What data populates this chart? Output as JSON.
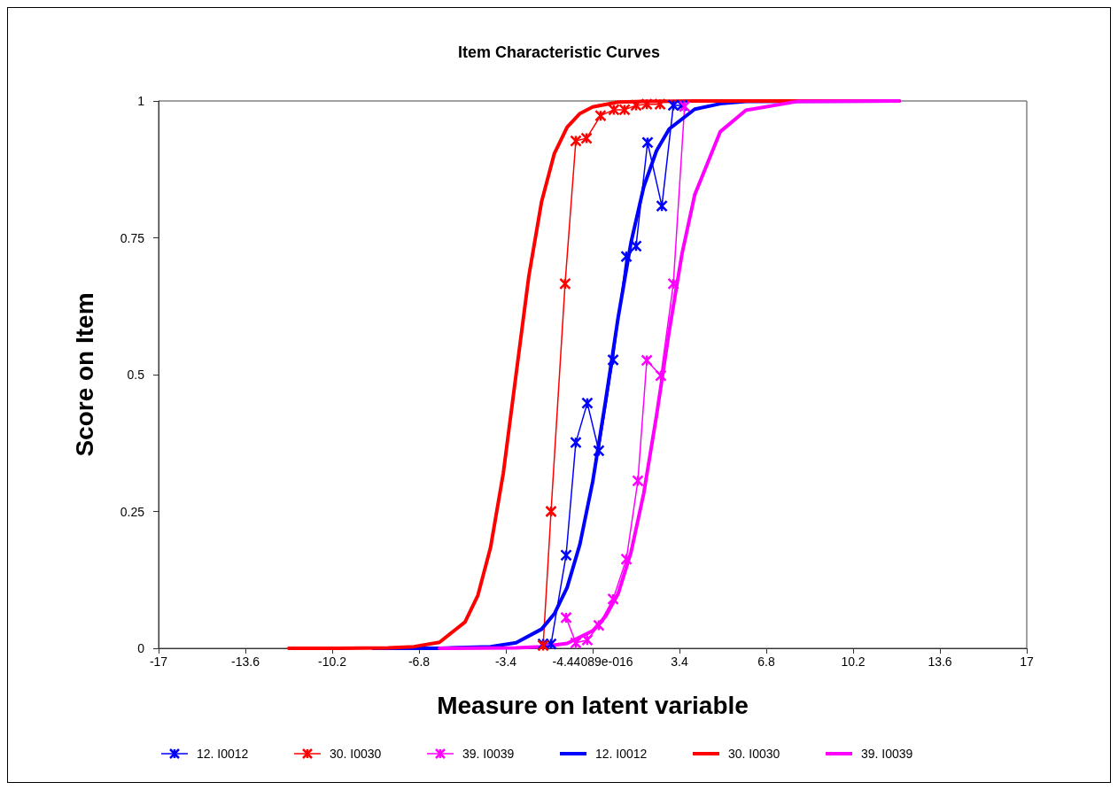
{
  "chart_data": {
    "type": "line",
    "title": "Item Characteristic Curves",
    "xlabel": "Measure on latent variable",
    "ylabel": "Score on Item",
    "xlim": [
      -17,
      17
    ],
    "xticks": [
      -17,
      -13.6,
      -10.2,
      -6.8,
      -3.4,
      {
        "value": 0,
        "label": "-4.44089e-016"
      },
      3.4,
      6.8,
      10.2,
      13.6,
      17
    ],
    "ylim": [
      0,
      1
    ],
    "yticks": [
      0,
      0.25,
      0.5,
      0.75,
      1
    ],
    "grid": false,
    "legend": "bottom",
    "line_style": "solid",
    "series": [
      {
        "name": "12. I0012",
        "color": "#0000ff",
        "marker": "cross",
        "x": [
          -1.94,
          -1.63,
          -1.04,
          -0.66,
          -0.21,
          0.24,
          0.8,
          1.32,
          1.7,
          2.15,
          2.71,
          3.16,
          3.5
        ],
        "values": [
          0.008,
          0.008,
          0.17,
          0.376,
          0.448,
          0.361,
          0.527,
          0.716,
          0.735,
          0.924,
          0.808,
          0.992,
          0.992
        ]
      },
      {
        "name": "30. I0030",
        "color": "#ff0000",
        "marker": "cross",
        "x": [
          -1.94,
          -1.63,
          -1.08,
          -0.66,
          -0.24,
          0.31,
          0.83,
          1.25,
          1.7,
          2.12,
          2.64
        ],
        "values": [
          0.005,
          0.25,
          0.666,
          0.927,
          0.932,
          0.973,
          0.984,
          0.984,
          0.992,
          0.994,
          0.994
        ]
      },
      {
        "name": "39. I0039",
        "color": "#ff00ff",
        "marker": "cross",
        "x": [
          -1.04,
          -0.66,
          -0.21,
          0.24,
          0.8,
          1.32,
          1.77,
          2.12,
          2.67,
          3.16,
          3.6
        ],
        "values": [
          0.056,
          0.01,
          0.015,
          0.042,
          0.09,
          0.163,
          0.306,
          0.526,
          0.498,
          0.666,
          0.99
        ]
      },
      {
        "name": "12. I0012",
        "color": "#0000ff",
        "marker": "none",
        "x": [
          -8.6,
          -6,
          -4,
          -3,
          -2,
          -1.5,
          -1,
          -0.5,
          0,
          0.5,
          1,
          1.5,
          2,
          2.5,
          3,
          4,
          5,
          6,
          12
        ],
        "values": [
          0,
          0,
          0.003,
          0.01,
          0.035,
          0.063,
          0.111,
          0.19,
          0.304,
          0.45,
          0.605,
          0.741,
          0.843,
          0.909,
          0.949,
          0.985,
          0.995,
          0.999,
          1
        ]
      },
      {
        "name": "30. I0030",
        "color": "#ff0000",
        "marker": "none",
        "x": [
          -11.9,
          -10,
          -8,
          -7,
          -6,
          -5,
          -4.5,
          -4,
          -3.5,
          -3,
          -2.5,
          -2,
          -1.5,
          -1,
          -0.5,
          0,
          1,
          2,
          4,
          12
        ],
        "values": [
          0,
          0,
          0.001,
          0.003,
          0.011,
          0.048,
          0.096,
          0.184,
          0.32,
          0.5,
          0.68,
          0.816,
          0.904,
          0.952,
          0.977,
          0.989,
          0.998,
          0.999,
          1,
          1
        ]
      },
      {
        "name": "39. I0039",
        "color": "#ff00ff",
        "marker": "none",
        "x": [
          -6,
          -3,
          -2,
          -1,
          0,
          0.5,
          1,
          1.5,
          2,
          2.5,
          3,
          3.5,
          4,
          5,
          6,
          8,
          12
        ],
        "values": [
          0,
          0.001,
          0.003,
          0.009,
          0.032,
          0.058,
          0.1,
          0.175,
          0.283,
          0.425,
          0.58,
          0.721,
          0.829,
          0.944,
          0.983,
          0.999,
          1
        ]
      }
    ]
  }
}
